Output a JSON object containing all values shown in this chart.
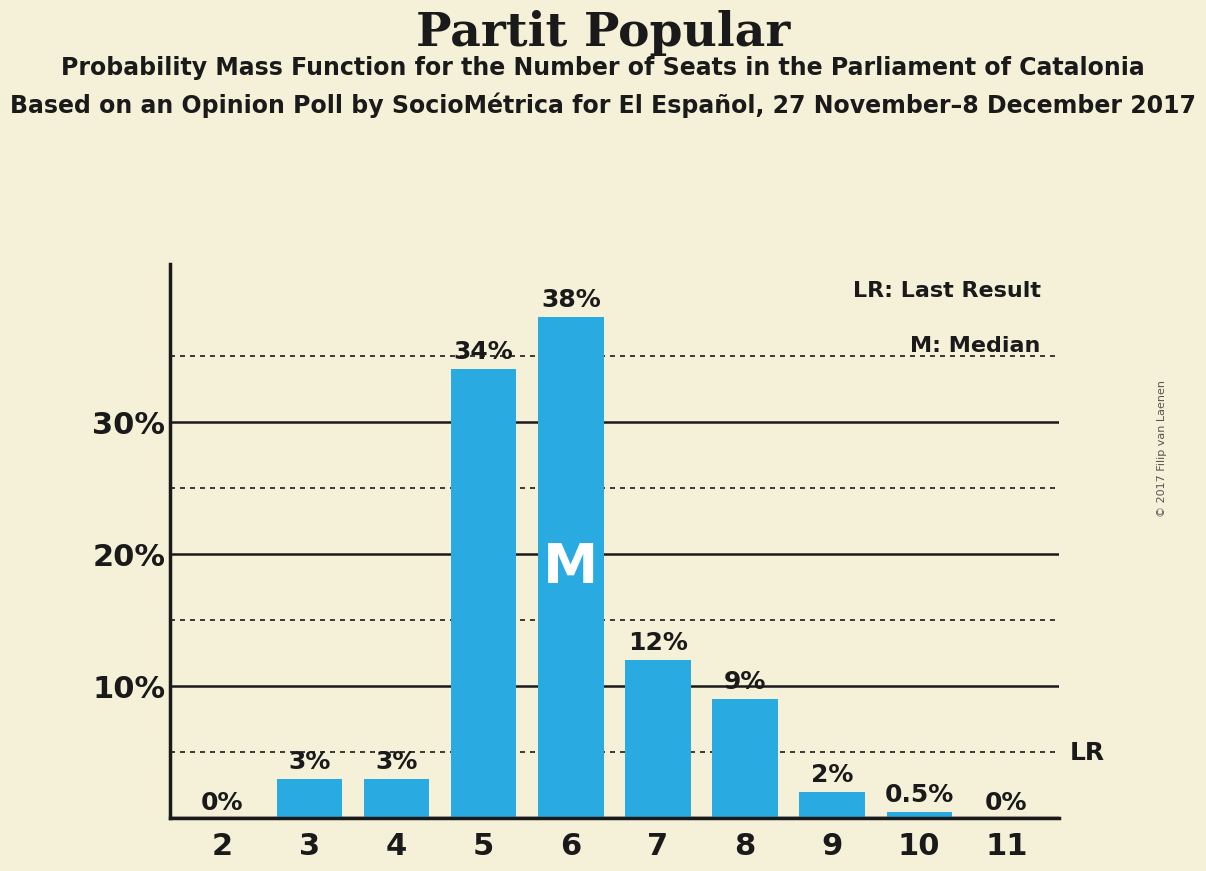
{
  "title": "Partit Popular",
  "subtitle1": "Probability Mass Function for the Number of Seats in the Parliament of Catalonia",
  "subtitle2": "Based on an Opinion Poll by SocioMétrica for El Español, 27 November–8 December 2017",
  "copyright": "© 2017 Filip van Laenen",
  "categories": [
    2,
    3,
    4,
    5,
    6,
    7,
    8,
    9,
    10,
    11
  ],
  "values": [
    0,
    3,
    3,
    34,
    38,
    12,
    9,
    2,
    0.5,
    0
  ],
  "bar_color": "#29ABE2",
  "bar_labels": [
    "0%",
    "3%",
    "3%",
    "34%",
    "38%",
    "12%",
    "9%",
    "2%",
    "0.5%",
    "0%"
  ],
  "median_bar_index": 4,
  "median_label": "M",
  "lr_value": 5,
  "lr_label": "LR",
  "background_color": "#F5F0D8",
  "text_color": "#1a1a1a",
  "solid_gridlines": [
    10,
    20,
    30
  ],
  "dotted_gridlines": [
    5,
    15,
    25,
    35
  ],
  "ylim": [
    0,
    42
  ],
  "title_fontsize": 34,
  "subtitle1_fontsize": 17,
  "subtitle2_fontsize": 17,
  "legend_fontsize": 16,
  "bar_label_fontsize": 18,
  "axis_tick_fontsize": 22,
  "median_fontsize": 40
}
